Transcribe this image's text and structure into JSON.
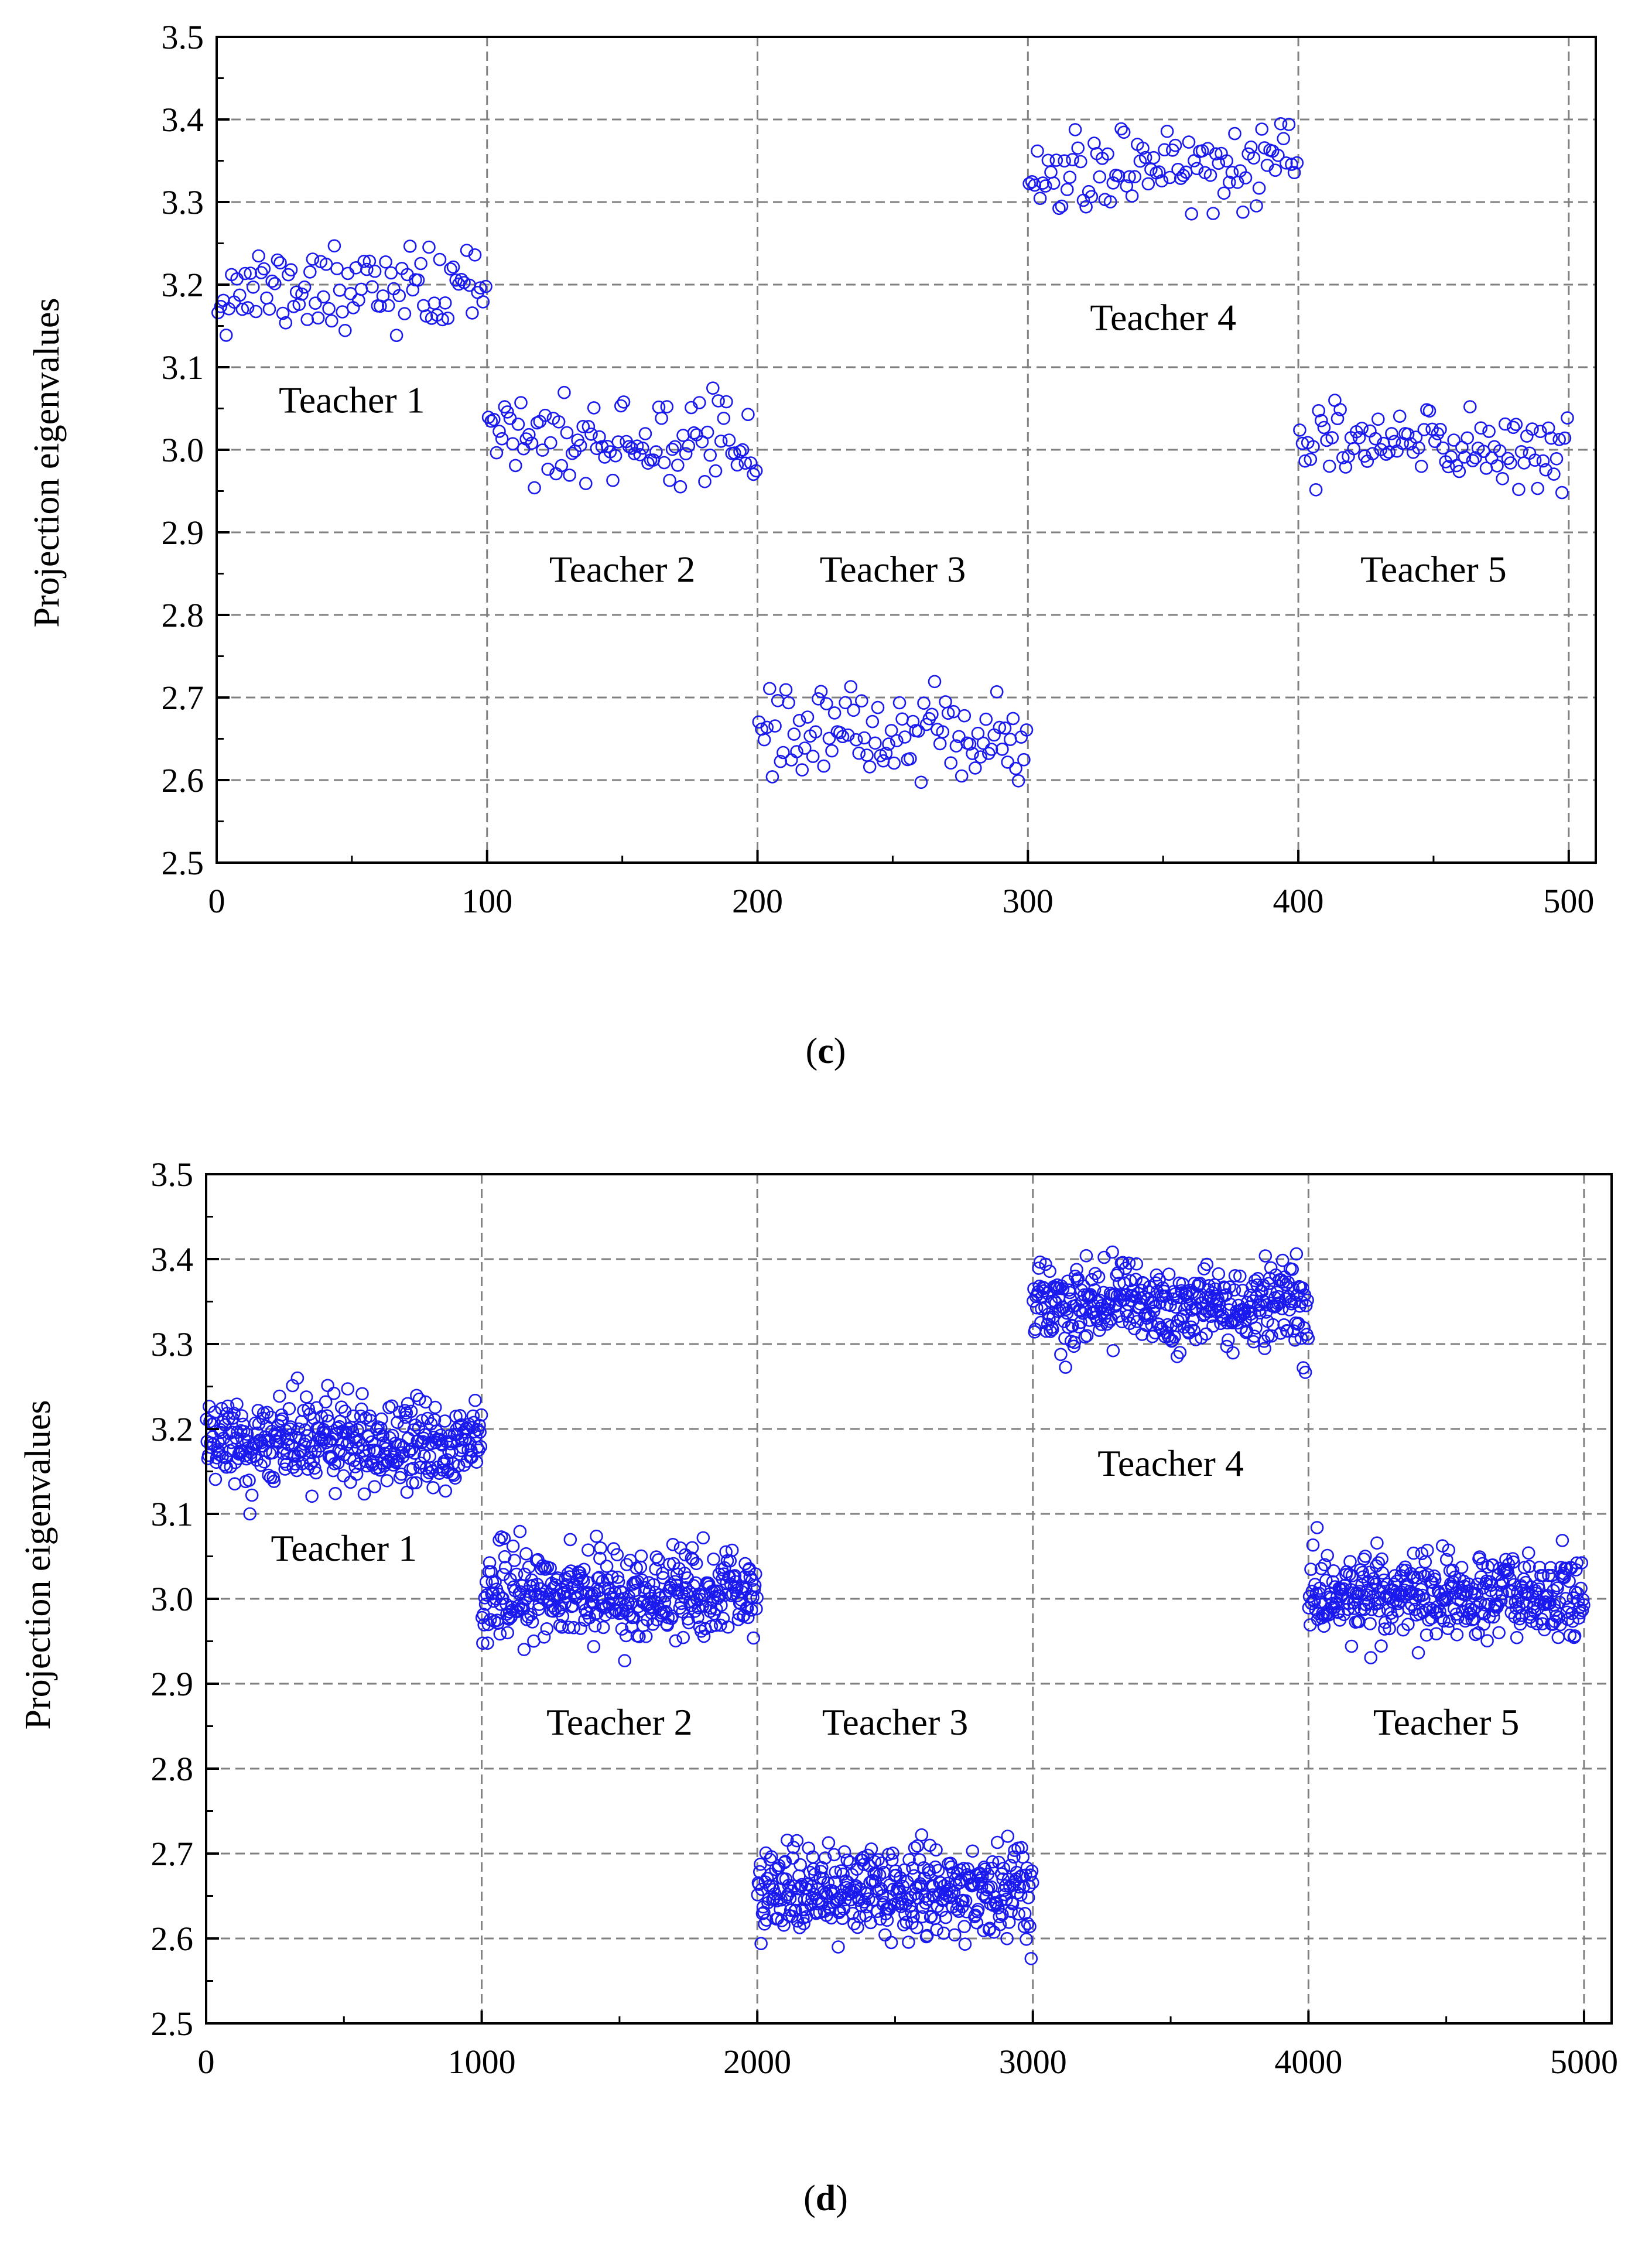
{
  "colors": {
    "marker": "#1a1aee",
    "grid": "#808080",
    "axis": "#000000",
    "background": "#ffffff"
  },
  "chart_data": [
    {
      "type": "scatter",
      "caption_open": "(",
      "caption_letter": "c",
      "caption_close": ")",
      "ylabel": "Projection eigenvalues",
      "xlabel": "",
      "xlim": [
        0,
        510
      ],
      "ylim": [
        2.5,
        3.5
      ],
      "x_ticks": [
        0,
        100,
        200,
        300,
        400,
        500
      ],
      "x_tick_labels": [
        "0",
        "100",
        "200",
        "300",
        "400",
        "500"
      ],
      "y_ticks": [
        2.5,
        2.6,
        2.7,
        2.8,
        2.9,
        3.0,
        3.1,
        3.2,
        3.3,
        3.4,
        3.5
      ],
      "y_tick_labels": [
        "2.5",
        "2.6",
        "2.7",
        "2.8",
        "2.9",
        "3.0",
        "3.1",
        "3.2",
        "3.3",
        "3.4",
        "3.5"
      ],
      "grid": true,
      "marker": "open-circle",
      "annotations": [
        {
          "text": "Teacher 1",
          "x": 50,
          "y": 3.045
        },
        {
          "text": "Teacher 2",
          "x": 150,
          "y": 2.84
        },
        {
          "text": "Teacher 3",
          "x": 250,
          "y": 2.84
        },
        {
          "text": "Teacher 4",
          "x": 350,
          "y": 3.145
        },
        {
          "text": "Teacher 5",
          "x": 450,
          "y": 2.84
        }
      ],
      "series": [
        {
          "x_range": [
            0,
            100
          ],
          "count": 100,
          "mean": 3.195,
          "spread": 0.03,
          "min": 3.13,
          "max": 3.25
        },
        {
          "x_range": [
            100,
            200
          ],
          "count": 100,
          "mean": 3.01,
          "spread": 0.03,
          "min": 2.94,
          "max": 3.075
        },
        {
          "x_range": [
            200,
            300
          ],
          "count": 100,
          "mean": 2.655,
          "spread": 0.03,
          "min": 2.595,
          "max": 2.735
        },
        {
          "x_range": [
            300,
            400
          ],
          "count": 100,
          "mean": 3.34,
          "spread": 0.03,
          "min": 3.285,
          "max": 3.395
        },
        {
          "x_range": [
            400,
            500
          ],
          "count": 100,
          "mean": 3.005,
          "spread": 0.03,
          "min": 2.945,
          "max": 3.06
        }
      ]
    },
    {
      "type": "scatter",
      "caption_open": "(",
      "caption_letter": "d",
      "caption_close": ")",
      "ylabel": "Projection eigenvalues",
      "xlabel": "",
      "xlim": [
        0,
        5100
      ],
      "ylim": [
        2.5,
        3.5
      ],
      "x_ticks": [
        0,
        1000,
        2000,
        3000,
        4000,
        5000
      ],
      "x_tick_labels": [
        "0",
        "1000",
        "2000",
        "3000",
        "4000",
        "5000"
      ],
      "y_ticks": [
        2.5,
        2.6,
        2.7,
        2.8,
        2.9,
        3.0,
        3.1,
        3.2,
        3.3,
        3.4,
        3.5
      ],
      "y_tick_labels": [
        "2.5",
        "2.6",
        "2.7",
        "2.8",
        "2.9",
        "3.0",
        "3.1",
        "3.2",
        "3.3",
        "3.4",
        "3.5"
      ],
      "grid": true,
      "marker": "open-circle",
      "annotations": [
        {
          "text": "Teacher 1",
          "x": 500,
          "y": 3.045
        },
        {
          "text": "Teacher 2",
          "x": 1500,
          "y": 2.84
        },
        {
          "text": "Teacher 3",
          "x": 2500,
          "y": 2.84
        },
        {
          "text": "Teacher 4",
          "x": 3500,
          "y": 3.145
        },
        {
          "text": "Teacher 5",
          "x": 4500,
          "y": 2.84
        }
      ],
      "series": [
        {
          "x_range": [
            0,
            1000
          ],
          "count": 400,
          "mean": 3.185,
          "spread": 0.03,
          "min": 3.1,
          "max": 3.28
        },
        {
          "x_range": [
            1000,
            2000
          ],
          "count": 400,
          "mean": 3.005,
          "spread": 0.03,
          "min": 2.91,
          "max": 3.1
        },
        {
          "x_range": [
            2000,
            3000
          ],
          "count": 400,
          "mean": 2.655,
          "spread": 0.03,
          "min": 2.575,
          "max": 2.745
        },
        {
          "x_range": [
            3000,
            4000
          ],
          "count": 400,
          "mean": 3.345,
          "spread": 0.03,
          "min": 3.265,
          "max": 3.425
        },
        {
          "x_range": [
            4000,
            5000
          ],
          "count": 400,
          "mean": 3.005,
          "spread": 0.03,
          "min": 2.93,
          "max": 3.085
        }
      ]
    }
  ]
}
